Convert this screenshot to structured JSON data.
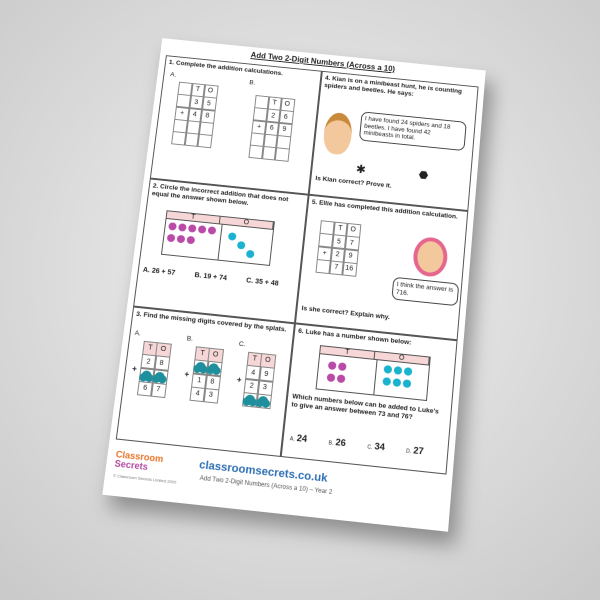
{
  "title": "Add Two 2-Digit Numbers (Across a 10)",
  "q1": {
    "prompt": "1. Complete the addition calculations.",
    "parts": [
      {
        "label": "A.",
        "rows": [
          [
            null,
            "T",
            "O"
          ],
          [
            null,
            "3",
            "5"
          ],
          [
            "+",
            "4",
            "8"
          ],
          [
            null,
            null,
            null
          ],
          [
            null,
            null,
            null
          ]
        ]
      },
      {
        "label": "B.",
        "rows": [
          [
            null,
            "T",
            "O"
          ],
          [
            null,
            "2",
            "6"
          ],
          [
            "+",
            "6",
            "9"
          ],
          [
            null,
            null,
            null
          ],
          [
            null,
            null,
            null
          ]
        ]
      }
    ]
  },
  "q2": {
    "prompt": "2. Circle the incorrect addition that does not equal the answer shown below.",
    "headers": [
      "T",
      "O"
    ],
    "options": [
      "A. 26 + 57",
      "B. 19 + 74",
      "C. 35 + 48"
    ]
  },
  "q3": {
    "prompt": "3. Find the missing digits covered by the splats.",
    "parts": [
      {
        "label": "A.",
        "plus": "+",
        "rows": [
          [
            "T",
            "O"
          ],
          [
            "2",
            "8"
          ],
          [
            null,
            null
          ],
          [
            "6",
            "7"
          ]
        ]
      },
      {
        "label": "B.",
        "plus": "+",
        "rows": [
          [
            "T",
            "O"
          ],
          [
            null,
            null
          ],
          [
            "1",
            "8"
          ],
          [
            "4",
            "3"
          ]
        ]
      },
      {
        "label": "C.",
        "plus": "+",
        "rows": [
          [
            "T",
            "O"
          ],
          [
            "4",
            "9"
          ],
          [
            "2",
            "3"
          ],
          [
            null,
            null
          ]
        ]
      }
    ]
  },
  "q4": {
    "prompt": "4. Kian is on a minibeast hunt, he is counting spiders and beetles. He says:",
    "speech": "I have found 24 spiders and 18 beetles. I have found 42 minibeasts in total.",
    "question": "Is Kian correct? Prove it."
  },
  "q5": {
    "prompt": "5. Ellie has completed this addition calculation.",
    "rows": [
      [
        null,
        "T",
        "O"
      ],
      [
        null,
        "5",
        "7"
      ],
      [
        "+",
        "2",
        "9"
      ],
      [
        null,
        "7",
        "16"
      ]
    ],
    "speech": "I think the answer is 716.",
    "question": "Is she correct? Explain why."
  },
  "q6": {
    "prompt": "6. Luke has a number shown below:",
    "headers": [
      "T",
      "O"
    ],
    "question": "Which numbers below can be added to Luke's to give an answer between 73 and 76?",
    "options": [
      {
        "letter": "A.",
        "number": "24"
      },
      {
        "letter": "B.",
        "number": "26"
      },
      {
        "letter": "C.",
        "number": "34"
      },
      {
        "letter": "D.",
        "number": "27"
      }
    ]
  },
  "footer": {
    "logo": [
      "Classroom",
      "Secrets"
    ],
    "copyright": "© Classroom Secrets Limited 2020",
    "website": "classroomsecrets.co.uk",
    "subtitle": "Add Two 2-Digit Numbers (Across a 10) – Year 2"
  }
}
